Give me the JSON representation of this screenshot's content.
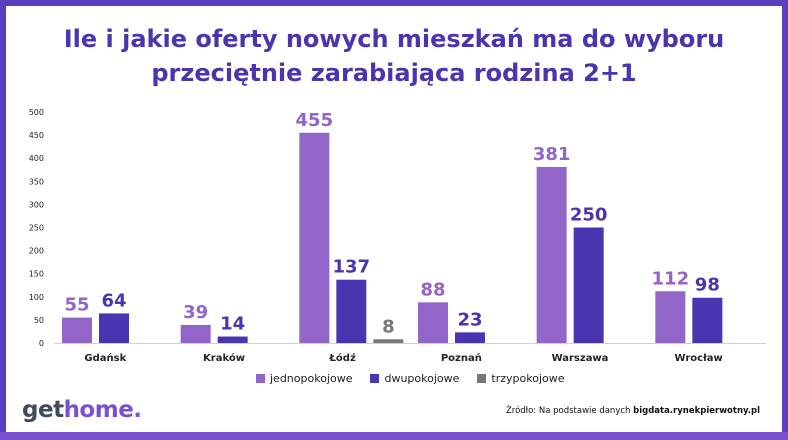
{
  "title": {
    "line1": "Ile i jakie oferty nowych mieszkań ma do wyboru",
    "line2": "przeciętnie zarabiająca rodzina 2+1"
  },
  "chart_data": {
    "type": "bar",
    "categories": [
      "Gdańsk",
      "Kraków",
      "Łódź",
      "Poznań",
      "Warszawa",
      "Wrocław"
    ],
    "series": [
      {
        "name": "jednopokojowe",
        "color": "#9265c8",
        "values": [
          55,
          39,
          455,
          88,
          381,
          112
        ]
      },
      {
        "name": "dwupokojowe",
        "color": "#4a35b0",
        "values": [
          64,
          14,
          137,
          23,
          250,
          98
        ]
      },
      {
        "name": "trzypokojowe",
        "color": "#777777",
        "values": [
          null,
          null,
          8,
          null,
          null,
          null
        ]
      }
    ],
    "ylim": [
      0,
      500
    ],
    "yticks": [
      0,
      50,
      100,
      150,
      200,
      250,
      300,
      350,
      400,
      450,
      500
    ],
    "grid": false,
    "legend": "bottom-center"
  },
  "brand": {
    "part1": "get",
    "part2": "home."
  },
  "source": {
    "prefix": "Źródło: Na podstawie danych ",
    "bold": "bigdata.rynekpierwotny.pl"
  }
}
